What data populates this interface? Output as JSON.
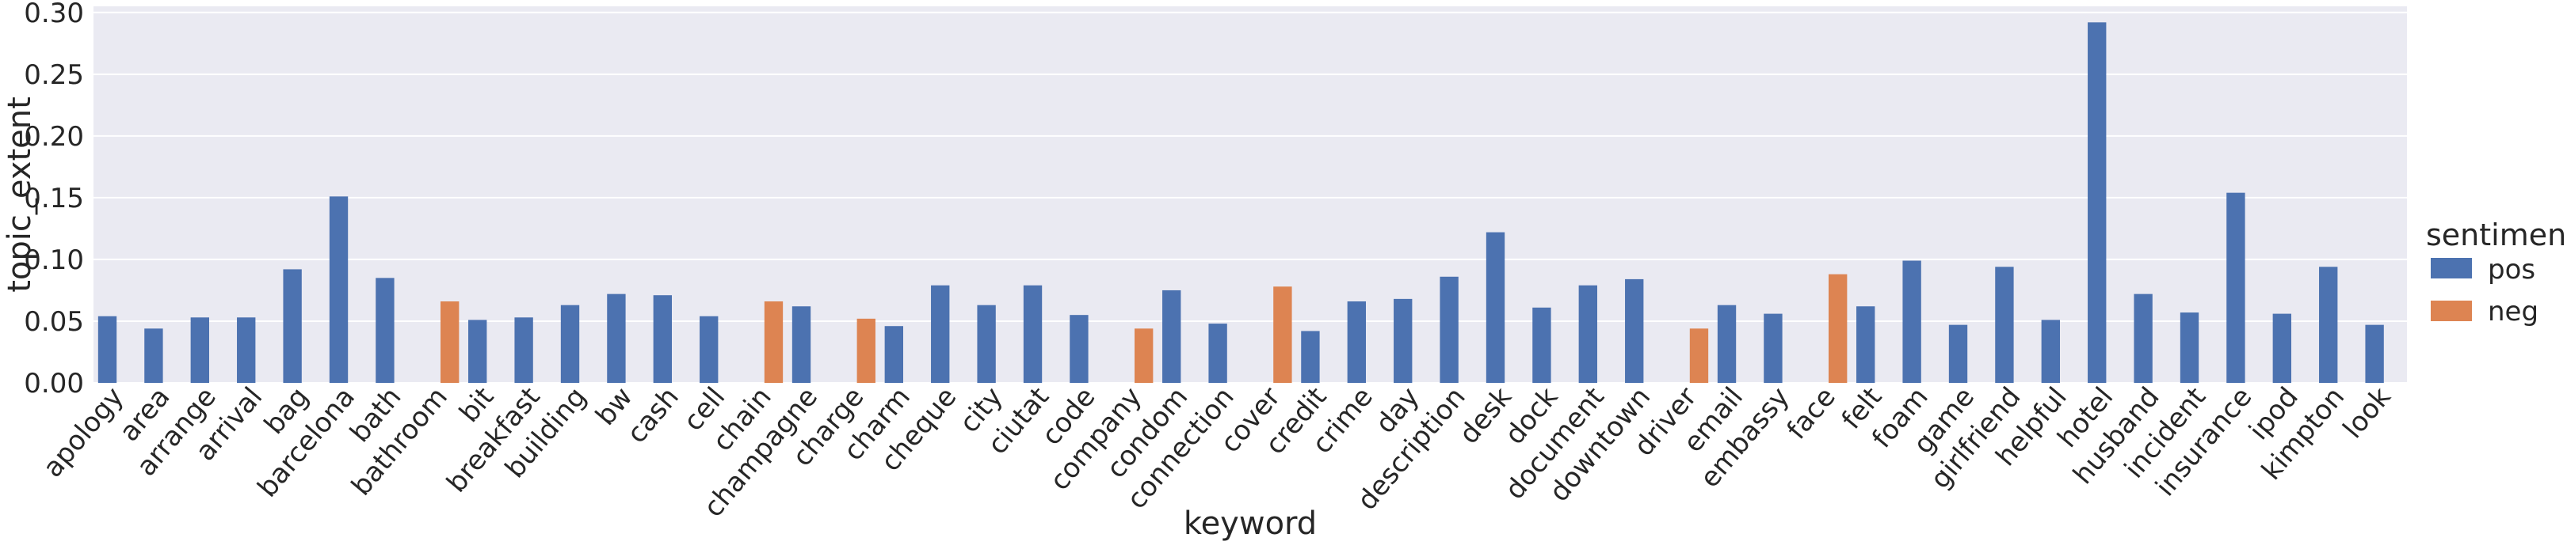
{
  "chart_data": {
    "type": "bar",
    "xlabel": "keyword",
    "ylabel": "topic_extent",
    "ylim": [
      0,
      0.305
    ],
    "yticks": [
      "0.00",
      "0.05",
      "0.10",
      "0.15",
      "0.20",
      "0.25",
      "0.30"
    ],
    "grid": true,
    "legend": {
      "title": "sentiment",
      "placement": "right",
      "entries": [
        {
          "label": "pos",
          "color": "#4c72b0"
        },
        {
          "label": "neg",
          "color": "#dd8452"
        }
      ]
    },
    "categories": [
      "apology",
      "area",
      "arrange",
      "arrival",
      "bag",
      "barcelona",
      "bath",
      "bathroom",
      "bit",
      "breakfast",
      "building",
      "bw",
      "cash",
      "cell",
      "chain",
      "champagne",
      "charge",
      "charm",
      "cheque",
      "city",
      "ciutat",
      "code",
      "company",
      "condom",
      "connection",
      "cover",
      "credit",
      "crime",
      "day",
      "description",
      "desk",
      "dock",
      "document",
      "downtown",
      "driver",
      "email",
      "embassy",
      "face",
      "felt",
      "foam",
      "game",
      "girlfriend",
      "helpful",
      "hotel",
      "husband",
      "incident",
      "insurance",
      "ipod",
      "kimpton",
      "look"
    ],
    "series": [
      {
        "name": "pos",
        "color": "#4c72b0",
        "values": [
          0.054,
          0.044,
          0.053,
          0.053,
          0.092,
          0.151,
          0.085,
          null,
          0.051,
          0.053,
          0.063,
          0.072,
          0.071,
          0.054,
          null,
          0.062,
          null,
          0.046,
          0.079,
          0.063,
          0.079,
          0.055,
          null,
          0.075,
          0.048,
          null,
          0.042,
          0.066,
          0.068,
          0.086,
          0.122,
          0.061,
          0.079,
          0.084,
          null,
          0.063,
          0.056,
          null,
          0.062,
          0.099,
          0.047,
          0.094,
          0.051,
          0.292,
          0.072,
          0.057,
          0.154,
          0.056,
          0.094,
          0.047
        ]
      },
      {
        "name": "neg",
        "color": "#dd8452",
        "values": [
          null,
          null,
          null,
          null,
          null,
          null,
          null,
          0.066,
          null,
          null,
          null,
          null,
          null,
          null,
          0.066,
          null,
          0.052,
          null,
          null,
          null,
          null,
          null,
          0.044,
          null,
          null,
          0.078,
          null,
          null,
          null,
          null,
          null,
          null,
          null,
          null,
          0.044,
          null,
          null,
          0.088,
          null,
          null,
          null,
          null,
          null,
          null,
          null,
          null,
          null,
          null,
          null,
          null
        ]
      }
    ]
  }
}
